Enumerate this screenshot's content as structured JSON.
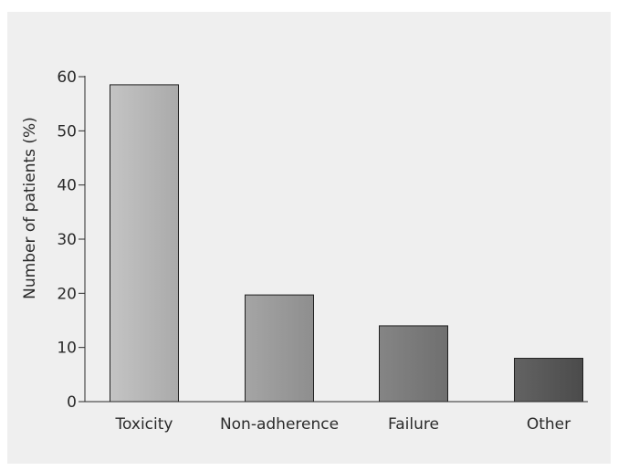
{
  "chart_data": {
    "type": "bar",
    "title": "",
    "xlabel": "",
    "ylabel": "Number of patients (%)",
    "ylim": [
      0,
      60
    ],
    "yticks": [
      0,
      10,
      20,
      30,
      40,
      50,
      60
    ],
    "grid": false,
    "legend": "none",
    "categories": [
      "Toxicity",
      "Non-adherence",
      "Failure",
      "Other"
    ],
    "values": [
      58.5,
      19.7,
      14.0,
      8.0
    ],
    "bar_colors": [
      {
        "light": "#c4c4c4",
        "dark": "#aaaaaa"
      },
      {
        "light": "#a5a5a5",
        "dark": "#8e8e8e"
      },
      {
        "light": "#858585",
        "dark": "#6f6f6f"
      },
      {
        "light": "#636363",
        "dark": "#4b4b4b"
      }
    ],
    "panel_background": "#efefef",
    "axis_color": "#2a2a2a"
  }
}
